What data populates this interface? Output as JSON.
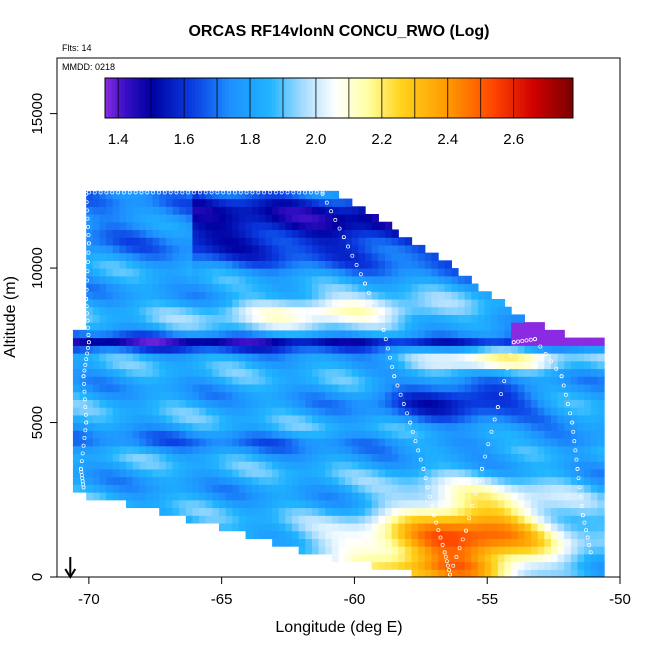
{
  "chart_data": {
    "type": "heatmap",
    "title": "ORCAS RF14vlonN CONCU_RWO (Log)",
    "annotations": [
      "Flts: 14",
      "MMDD: 0218"
    ],
    "xlabel": "Longitude (deg E)",
    "ylabel": "Altitude (m)",
    "xlim": [
      -71.2,
      -50
    ],
    "ylim": [
      0,
      16800
    ],
    "x_ticks": [
      -70,
      -65,
      -60,
      -55,
      -50
    ],
    "y_ticks": [
      0,
      5000,
      10000,
      15000
    ],
    "colorbar": {
      "range": [
        1.36,
        2.78
      ],
      "ticks": [
        1.4,
        1.6,
        1.8,
        2.0,
        2.2,
        2.4,
        2.6
      ],
      "stops": [
        {
          "v": 1.36,
          "color": "#8a2be2"
        },
        {
          "v": 1.42,
          "color": "#3a10c8"
        },
        {
          "v": 1.5,
          "color": "#0000a0"
        },
        {
          "v": 1.62,
          "color": "#0a3ae0"
        },
        {
          "v": 1.74,
          "color": "#1e90ff"
        },
        {
          "v": 1.86,
          "color": "#20b4ff"
        },
        {
          "v": 1.96,
          "color": "#a6dcff"
        },
        {
          "v": 2.06,
          "color": "#ffffff"
        },
        {
          "v": 2.16,
          "color": "#ffffa0"
        },
        {
          "v": 2.26,
          "color": "#ffd21a"
        },
        {
          "v": 2.4,
          "color": "#ff9900"
        },
        {
          "v": 2.54,
          "color": "#ff4500"
        },
        {
          "v": 2.66,
          "color": "#d00000"
        },
        {
          "v": 2.78,
          "color": "#7a0000"
        }
      ]
    },
    "upper_boundary": [
      {
        "x": -70.2,
        "y": 12500
      },
      {
        "x": -61.0,
        "y": 12500
      },
      {
        "x": -57.3,
        "y": 10500
      },
      {
        "x": -53.5,
        "y": 8200
      },
      {
        "x": -51.5,
        "y": 7600
      }
    ],
    "lower_boundary": [
      {
        "x": -70.5,
        "y": 2800
      },
      {
        "x": -67.5,
        "y": 2300
      },
      {
        "x": -65.0,
        "y": 1700
      },
      {
        "x": -62.5,
        "y": 1100
      },
      {
        "x": -60.0,
        "y": 600
      },
      {
        "x": -58.0,
        "y": 280
      },
      {
        "x": -56.0,
        "y": 50
      },
      {
        "x": -51.5,
        "y": 0
      },
      {
        "x": -50.8,
        "y": 1500
      },
      {
        "x": -51.3,
        "y": 5000
      }
    ],
    "flight_track": [
      {
        "x": -70.1,
        "y": 12400
      },
      {
        "x": -70.0,
        "y": 10800
      },
      {
        "x": -70.1,
        "y": 9000
      },
      {
        "x": -70.0,
        "y": 7600
      },
      {
        "x": -70.2,
        "y": 6500
      },
      {
        "x": -70.1,
        "y": 5000
      },
      {
        "x": -70.3,
        "y": 3500
      },
      {
        "x": -70.2,
        "y": 2900
      },
      {
        "x": -61.2,
        "y": 12400
      },
      {
        "x": -60.4,
        "y": 11000
      },
      {
        "x": -59.6,
        "y": 9500
      },
      {
        "x": -58.9,
        "y": 8000
      },
      {
        "x": -58.5,
        "y": 6500
      },
      {
        "x": -57.9,
        "y": 5000
      },
      {
        "x": -57.4,
        "y": 3500
      },
      {
        "x": -57.0,
        "y": 2000
      },
      {
        "x": -56.6,
        "y": 800
      },
      {
        "x": -56.4,
        "y": 80
      },
      {
        "x": -55.8,
        "y": 1500
      },
      {
        "x": -55.2,
        "y": 3500
      },
      {
        "x": -54.6,
        "y": 5500
      },
      {
        "x": -54.0,
        "y": 7600
      },
      {
        "x": -53.2,
        "y": 7700
      },
      {
        "x": -52.2,
        "y": 6500
      },
      {
        "x": -51.8,
        "y": 5000
      },
      {
        "x": -51.6,
        "y": 3500
      },
      {
        "x": -51.4,
        "y": 2000
      },
      {
        "x": -51.1,
        "y": 800
      }
    ],
    "aircraft_marker": {
      "x": -70.7,
      "y": 0
    },
    "grid": false
  }
}
